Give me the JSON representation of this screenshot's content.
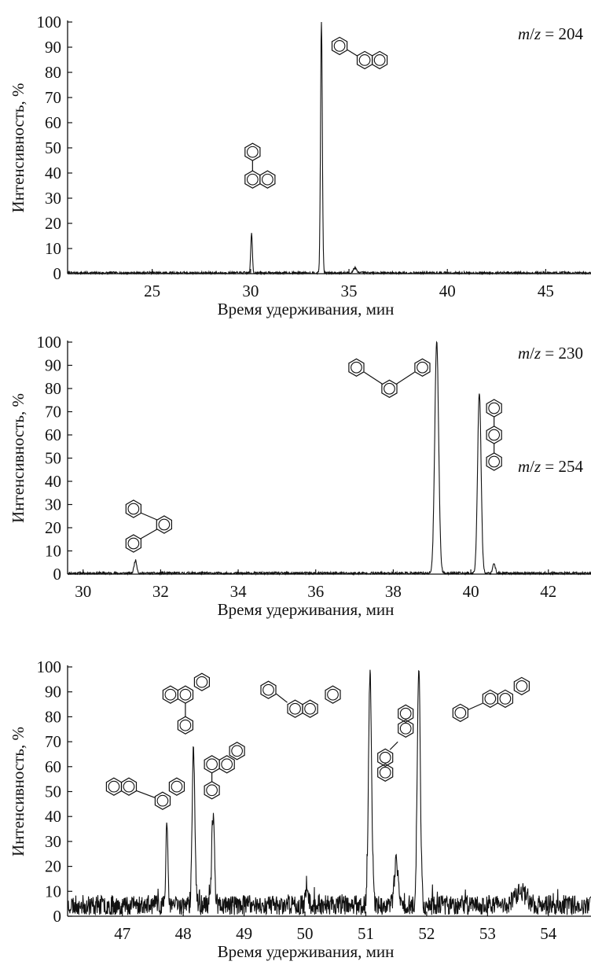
{
  "chart_data": [
    {
      "type": "line",
      "annotation": "m/z = 204",
      "xlabel": "Время удерживания, мин",
      "ylabel": "Интенсивность, %",
      "xlim": [
        20.7,
        47.3
      ],
      "ylim": [
        0,
        100
      ],
      "xticks": [
        25,
        30,
        35,
        40,
        45
      ],
      "yticks": [
        0,
        10,
        20,
        30,
        40,
        50,
        60,
        70,
        80,
        90,
        100
      ],
      "baseline": 0.3,
      "noise": 0.5,
      "seed": 7,
      "peaks": [
        {
          "x": 30.05,
          "y": 16.0,
          "w": 0.04
        },
        {
          "x": 33.6,
          "y": 100.0,
          "w": 0.045
        },
        {
          "x": 35.3,
          "y": 2.0,
          "w": 0.08
        }
      ],
      "structures": [
        {
          "label": "phenylnaphthalene (30.1 min)",
          "x": 30.1,
          "y": 39
        },
        {
          "label": "phenylnaphthalene (33.6 min)",
          "x": 35.8,
          "y": 88
        }
      ]
    },
    {
      "type": "line",
      "annotation": "m/z = 230",
      "xlabel": "Время удерживания, мин",
      "ylabel": "Интенсивность, %",
      "xlim": [
        29.6,
        43.1
      ],
      "ylim": [
        0,
        100
      ],
      "xticks": [
        30,
        32,
        34,
        36,
        38,
        40,
        42
      ],
      "yticks": [
        0,
        10,
        20,
        30,
        40,
        50,
        60,
        70,
        80,
        90,
        100
      ],
      "baseline": 0.4,
      "noise": 0.5,
      "seed": 11,
      "peaks": [
        {
          "x": 31.35,
          "y": 5.5,
          "w": 0.035
        },
        {
          "x": 39.12,
          "y": 100.0,
          "w": 0.05
        },
        {
          "x": 40.22,
          "y": 78.0,
          "w": 0.045
        },
        {
          "x": 40.6,
          "y": 4.5,
          "w": 0.03
        }
      ],
      "structures": [
        {
          "label": "o-terphenyl",
          "x": 31.3,
          "y": 20
        },
        {
          "label": "m-terphenyl",
          "x": 37.9,
          "y": 85
        },
        {
          "label": "p-terphenyl",
          "x": 40.6,
          "y": 60
        }
      ]
    },
    {
      "type": "line",
      "annotation": "m/z = 254",
      "xlabel": "Время удерживания, мин",
      "ylabel": "Интенсивность, %",
      "xlim": [
        46.1,
        54.7
      ],
      "ylim": [
        0,
        100
      ],
      "xticks": [
        47,
        48,
        49,
        50,
        51,
        52,
        53,
        54
      ],
      "yticks": [
        0,
        10,
        20,
        30,
        40,
        50,
        60,
        70,
        80,
        90,
        100
      ],
      "baseline": 4.5,
      "noise": 4.0,
      "seed": 23,
      "peaks": [
        {
          "x": 47.73,
          "y": 30.0,
          "w": 0.018
        },
        {
          "x": 48.17,
          "y": 63.0,
          "w": 0.022
        },
        {
          "x": 48.49,
          "y": 37.0,
          "w": 0.022
        },
        {
          "x": 50.04,
          "y": 6.0,
          "w": 0.025
        },
        {
          "x": 51.07,
          "y": 95.0,
          "w": 0.025
        },
        {
          "x": 51.5,
          "y": 17.0,
          "w": 0.03
        },
        {
          "x": 51.87,
          "y": 96.0,
          "w": 0.025
        },
        {
          "x": 53.55,
          "y": 5.0,
          "w": 0.1
        }
      ],
      "structures": [
        {
          "label": "naphthylbiphenyl (47.7 min)",
          "x": 47.3,
          "y": 52
        },
        {
          "label": "phenyl-phenanthrene type (48.2 min)",
          "x": 48.1,
          "y": 87
        },
        {
          "label": "phenyl-phenanthrene type (48.5 min)",
          "x": 48.6,
          "y": 60
        },
        {
          "label": "phenylphenyl-naphthalene (51.1 min)",
          "x": 50.2,
          "y": 87
        },
        {
          "label": "biphenyl-biphenyl (51.5 min)",
          "x": 51.5,
          "y": 75
        },
        {
          "label": "naphthylphenyl-benzene (51.9 min)",
          "x": 53.2,
          "y": 86
        }
      ]
    }
  ]
}
